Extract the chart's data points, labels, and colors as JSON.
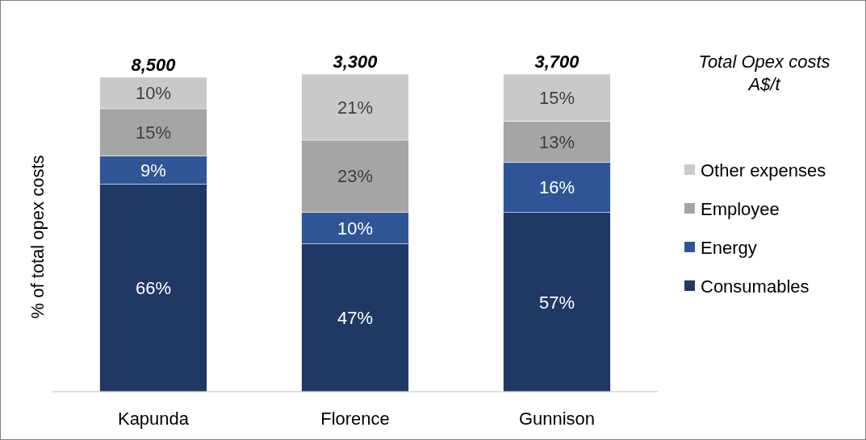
{
  "chart_data": {
    "type": "bar",
    "stacked": true,
    "ylabel": "% of total opex costs",
    "categories": [
      "Kapunda",
      "Florence",
      "Gunnison"
    ],
    "series": [
      {
        "name": "Consumables",
        "color": "#203864",
        "values": [
          66,
          47,
          57
        ],
        "value_labels": [
          "66%",
          "47%",
          "57%"
        ]
      },
      {
        "name": "Energy",
        "color": "#2f5597",
        "values": [
          9,
          10,
          16
        ],
        "value_labels": [
          "9%",
          "10%",
          "16%"
        ]
      },
      {
        "name": "Employee",
        "color": "#a5a5a5",
        "values": [
          15,
          23,
          13
        ],
        "value_labels": [
          "15%",
          "23%",
          "13%"
        ]
      },
      {
        "name": "Other expenses",
        "color": "#c9c9c9",
        "values": [
          10,
          21,
          15
        ],
        "value_labels": [
          "10%",
          "21%",
          "15%"
        ]
      }
    ],
    "annotations": [
      "8,500",
      "3,300",
      "3,700",
      "Total Opex costs A$/t"
    ],
    "legend": "right"
  }
}
